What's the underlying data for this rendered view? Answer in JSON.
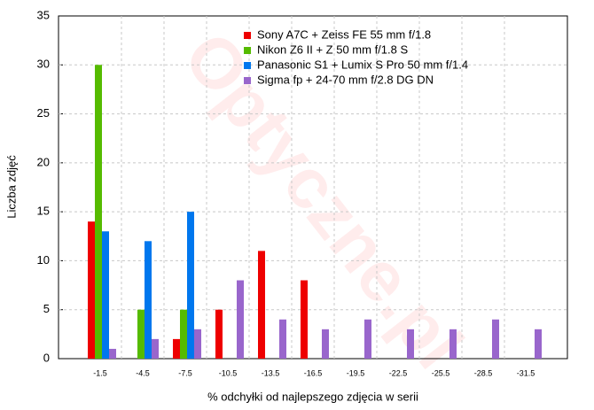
{
  "chart_data": {
    "type": "bar",
    "watermark": "Optyczne.pl",
    "xlabel": "% odchyłki od najlepszego zdjęcia w serii",
    "ylabel": "Liczba zdjęć",
    "categories": [
      "-1.5",
      "-4.5",
      "-7.5",
      "-10.5",
      "-13.5",
      "-16.5",
      "-19.5",
      "-22.5",
      "-25.5",
      "-28.5",
      "-31.5"
    ],
    "series": [
      {
        "name": "Sony A7C + Zeiss FE 55 mm f/1.8",
        "color": "#ee0000",
        "values": [
          14,
          0,
          2,
          5,
          11,
          8,
          0,
          0,
          0,
          0,
          0
        ]
      },
      {
        "name": "Nikon Z6 II + Z 50 mm f/1.8 S",
        "color": "#55bb00",
        "values": [
          30,
          5,
          5,
          0,
          0,
          0,
          0,
          0,
          0,
          0,
          0
        ]
      },
      {
        "name": "Panasonic S1 + Lumix S Pro 50 mm f/1.4",
        "color": "#0077ee",
        "values": [
          13,
          12,
          15,
          0,
          0,
          0,
          0,
          0,
          0,
          0,
          0
        ]
      },
      {
        "name": "Sigma fp + 24-70 mm f/2.8 DG DN",
        "color": "#9966cc",
        "values": [
          1,
          2,
          3,
          8,
          4,
          3,
          4,
          3,
          3,
          4,
          3
        ]
      }
    ],
    "ylim": [
      0,
      35
    ],
    "yticks": [
      0,
      5,
      10,
      15,
      20,
      25,
      30,
      35
    ],
    "grid": true,
    "legend": "top-right"
  }
}
